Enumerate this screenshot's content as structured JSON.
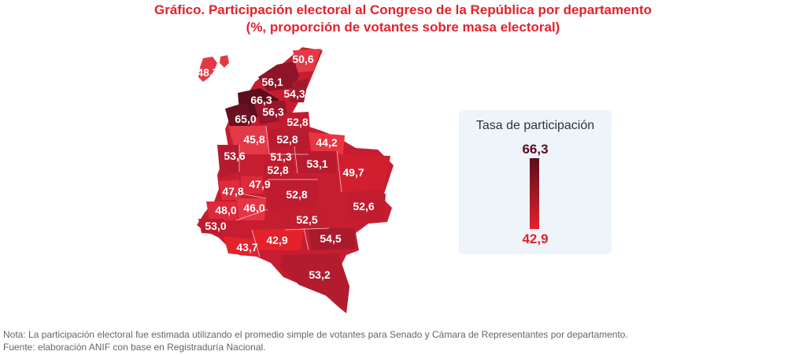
{
  "title": {
    "line1": "Gráfico. Participación electoral al Congreso de la República por departamento",
    "line2": "(%, proporción de votantes sobre masa electoral)"
  },
  "legend": {
    "title": "Tasa de participación",
    "max": "66,3",
    "min": "42,9",
    "color_max": "#5c0d1f",
    "color_min": "#e4222c"
  },
  "regions": [
    {
      "label": "48,7",
      "value": 48.7
    },
    {
      "label": "50,6",
      "value": 50.6
    },
    {
      "label": "56,1",
      "value": 56.1
    },
    {
      "label": "54,3",
      "value": 54.3
    },
    {
      "label": "66,3",
      "value": 66.3
    },
    {
      "label": "65,0",
      "value": 65.0
    },
    {
      "label": "56,3",
      "value": 56.3
    },
    {
      "label": "52,8",
      "value": 52.8
    },
    {
      "label": "45,8",
      "value": 45.8
    },
    {
      "label": "52,8",
      "value": 52.8
    },
    {
      "label": "44,2",
      "value": 44.2
    },
    {
      "label": "53,6",
      "value": 53.6
    },
    {
      "label": "51,3",
      "value": 51.3
    },
    {
      "label": "53,1",
      "value": 53.1
    },
    {
      "label": "52,8",
      "value": 52.8
    },
    {
      "label": "49,7",
      "value": 49.7
    },
    {
      "label": "47,8",
      "value": 47.8
    },
    {
      "label": "47,9",
      "value": 47.9
    },
    {
      "label": "52,8",
      "value": 52.8
    },
    {
      "label": "48,0",
      "value": 48.0
    },
    {
      "label": "46,0",
      "value": 46.0
    },
    {
      "label": "52,6",
      "value": 52.6
    },
    {
      "label": "53,0",
      "value": 53.0
    },
    {
      "label": "52,5",
      "value": 52.5
    },
    {
      "label": "42,9",
      "value": 42.9
    },
    {
      "label": "54,5",
      "value": 54.5
    },
    {
      "label": "43,7",
      "value": 43.7
    },
    {
      "label": "53,2",
      "value": 53.2
    }
  ],
  "notes": {
    "nota": "Nota: La participación electoral fue estimada utilizando el promedio simple de votantes para Senado y Cámara de Representantes por departamento.",
    "fuente": "Fuente: elaboración ANIF con base en Registraduría Nacional."
  }
}
